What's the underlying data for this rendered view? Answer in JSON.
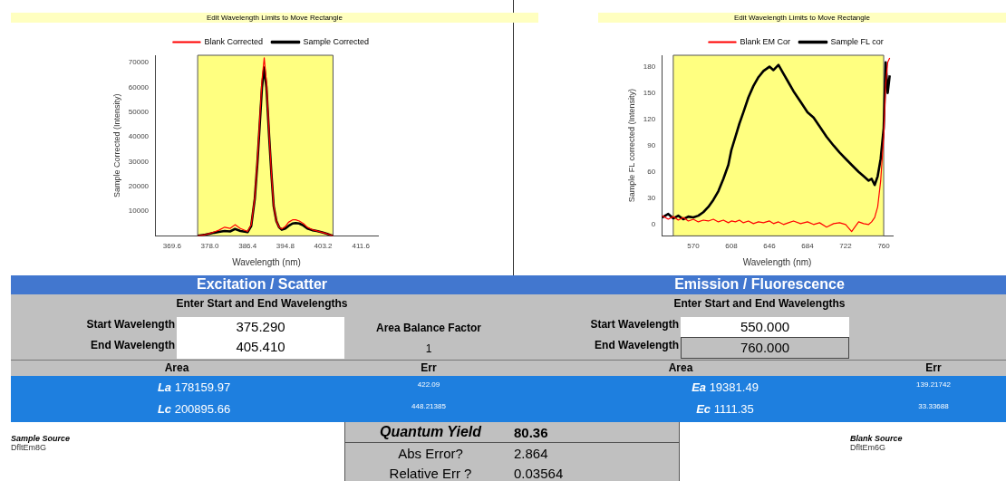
{
  "chart_data": [
    {
      "type": "line",
      "title": "Edit Wavelength Limits to Move Rectangle",
      "xlabel": "Wavelength (nm)",
      "ylabel": "Sample Corrected (Intensity)",
      "legend": "top right",
      "x": [
        375.3,
        376,
        377,
        378,
        379,
        380,
        381.3,
        382.5,
        383.6,
        384.8,
        386.4,
        387.2,
        388,
        388.6,
        389.1,
        389.6,
        390.1,
        390.6,
        391.2,
        391.7,
        392.2,
        392.8,
        393.4,
        394,
        394.8,
        395.5,
        396.4,
        397.1,
        397.9,
        398.8,
        399.7,
        400.8,
        401.8,
        403,
        404,
        405.4
      ],
      "series": [
        {
          "name": "Sample Corrected",
          "color": "#000000",
          "values": [
            0,
            200,
            500,
            900,
            1300,
            1600,
            2000,
            1800,
            2800,
            2000,
            1500,
            4000,
            15000,
            30000,
            45000,
            60000,
            68000,
            60000,
            40000,
            25000,
            12000,
            6000,
            3500,
            2500,
            3000,
            4000,
            5000,
            5200,
            5000,
            4200,
            3000,
            2300,
            2000,
            1400,
            900,
            0
          ]
        },
        {
          "name": "Blank Corrected",
          "color": "#ff0000",
          "values": [
            0,
            200,
            500,
            1000,
            1600,
            2300,
            3500,
            3000,
            4500,
            3000,
            1800,
            4500,
            15500,
            31000,
            47000,
            63000,
            72000,
            62000,
            41000,
            25000,
            12000,
            6000,
            3500,
            2800,
            3800,
            5500,
            6500,
            6500,
            6000,
            5000,
            3500,
            2500,
            2000,
            1400,
            900,
            0
          ]
        }
      ],
      "xlim": [
        365.8,
        415.4
      ],
      "xticks": [
        369.6,
        {
          "value": 378,
          "label": "378.0"
        },
        386.4,
        394.8,
        403.2,
        411.6
      ],
      "ylim": [
        0,
        73000
      ],
      "yticks": [
        10000,
        20000,
        30000,
        40000,
        50000,
        60000,
        70000
      ],
      "bands": [
        {
          "axis": "x",
          "from": 375.29,
          "to": 405.41,
          "color": "#ffff80"
        }
      ]
    },
    {
      "type": "line",
      "title": "Edit Wavelength Limits to Move Rectangle",
      "xlabel": "Wavelength (nm)",
      "ylabel": "Sample FL corrected (Intensity)",
      "legend": "top right",
      "x": [
        539,
        545,
        550,
        555,
        560,
        565,
        570,
        575,
        580,
        585,
        590,
        595,
        600,
        605,
        608,
        612,
        616,
        620,
        625,
        630,
        635,
        640,
        646,
        650,
        655,
        660,
        665,
        670,
        677,
        684,
        690,
        696,
        703,
        710,
        716,
        722,
        728,
        735,
        740,
        745,
        748,
        751,
        754,
        757,
        760,
        762,
        764,
        766
      ],
      "series": [
        {
          "name": "Sample FL cor",
          "color": "#000000",
          "values": [
            8,
            12,
            7,
            10,
            6,
            9,
            8,
            10,
            14,
            20,
            28,
            38,
            52,
            68,
            85,
            100,
            115,
            128,
            145,
            158,
            168,
            175,
            180,
            176,
            182,
            172,
            162,
            152,
            140,
            128,
            122,
            112,
            100,
            90,
            82,
            75,
            68,
            60,
            55,
            50,
            52,
            45,
            55,
            75,
            110,
            185,
            150,
            170
          ]
        },
        {
          "name": "Blank EM Cor",
          "color": "#ff0000",
          "values": [
            10,
            6,
            9,
            5,
            8,
            4,
            6,
            3,
            5,
            4,
            6,
            3,
            5,
            2,
            4,
            3,
            5,
            2,
            4,
            1,
            3,
            2,
            4,
            1,
            3,
            0,
            2,
            4,
            1,
            3,
            0,
            2,
            -3,
            1,
            2,
            0,
            -8,
            3,
            1,
            0,
            3,
            8,
            20,
            50,
            100,
            160,
            185,
            190
          ]
        }
      ],
      "xlim": [
        538.5,
        769
      ],
      "xticks": [
        570,
        608,
        646,
        684,
        722,
        760
      ],
      "ylim": [
        -13,
        193
      ],
      "yticks": [
        0,
        30,
        60,
        90,
        120,
        150,
        180
      ],
      "bands": [
        {
          "axis": "x",
          "from": 550,
          "to": 760,
          "color": "#ffff80"
        }
      ]
    },
    {
      "type": "other",
      "title": "Excitation / Scatter",
      "annotations": [
        "Enter Start and End Wavelengths",
        "Start Wavelength",
        "375.290",
        "End Wavelength",
        "405.410",
        "Area Balance Factor",
        "1",
        "Area",
        "Err",
        "La 178159.97",
        "422.09",
        "Lc 200895.66",
        "448.21385"
      ]
    },
    {
      "type": "other",
      "title": "Emission / Fluorescence",
      "annotations": [
        "Enter Start and End Wavelengths",
        "Start Wavelength",
        "550.000",
        "End Wavelength",
        "760.000",
        "Area",
        "Err",
        "Ea 19381.49",
        "139.21742",
        "Ec 1111.35",
        "33.33688"
      ]
    },
    {
      "type": "other",
      "annotations": [
        "Sample Source",
        "DfltEm8G",
        "Quantum Yield",
        "80.36",
        "Abs Error?",
        "2.864",
        "Relative Err ?",
        "0.03564",
        "Blank Source",
        "DfltEm6G"
      ]
    }
  ]
}
